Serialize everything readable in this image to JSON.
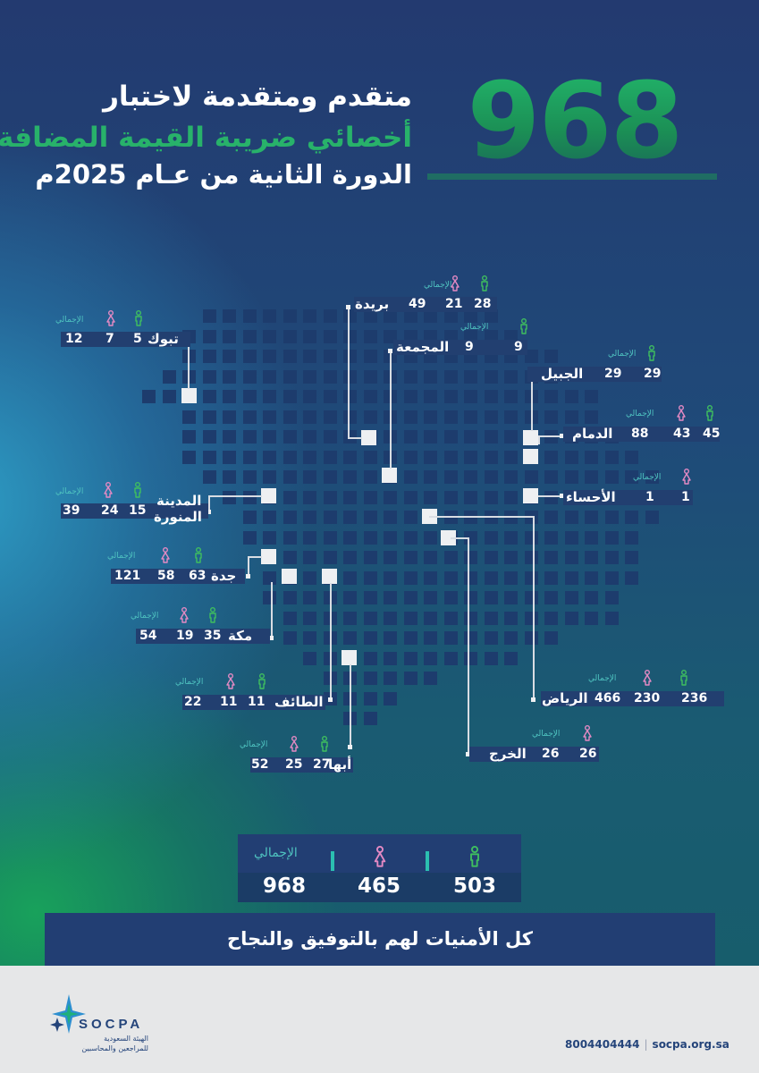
{
  "header": {
    "big_number": "968",
    "line1": "متقدم ومتقدمة لاختبار",
    "line2": "أخصائي ضريبة القيمة المضافة",
    "line3": "الدورة الثانية من عـام 2025م"
  },
  "labels": {
    "total": "الإجمالي"
  },
  "cities": [
    {
      "id": "tabuk",
      "name": "تبوك",
      "male": "5",
      "female": "7",
      "total": "12"
    },
    {
      "id": "buraydah",
      "name": "بريدة",
      "male": "28",
      "female": "21",
      "total": "49"
    },
    {
      "id": "majmaah",
      "name": "المجمعة",
      "male": "9",
      "female": "",
      "total": "9"
    },
    {
      "id": "jubail",
      "name": "الجبيل",
      "male": "29",
      "female": "",
      "total": "29"
    },
    {
      "id": "dammam",
      "name": "الدمام",
      "male": "45",
      "female": "43",
      "total": "88"
    },
    {
      "id": "ahsa",
      "name": "الأحساء",
      "male": "",
      "female": "1",
      "total": "1"
    },
    {
      "id": "madinah",
      "name": "المدينة المنورة",
      "name_line1": "المدينة",
      "name_line2": "المنورة",
      "male": "15",
      "female": "24",
      "total": "39"
    },
    {
      "id": "jeddah",
      "name": "جدة",
      "male": "63",
      "female": "58",
      "total": "121"
    },
    {
      "id": "makkah",
      "name": "مكة",
      "male": "35",
      "female": "19",
      "total": "54"
    },
    {
      "id": "taif",
      "name": "الطائف",
      "male": "11",
      "female": "11",
      "total": "22"
    },
    {
      "id": "riyadh",
      "name": "الرياض",
      "male": "236",
      "female": "230",
      "total": "466"
    },
    {
      "id": "abha",
      "name": "أبها",
      "male": "27",
      "female": "25",
      "total": "52"
    },
    {
      "id": "kharj",
      "name": "الخرج",
      "male": "",
      "female": "26",
      "total": "26"
    }
  ],
  "totals": {
    "male": "503",
    "female": "465",
    "total": "968",
    "total_label": "الإجمالي"
  },
  "banner": "كل الأمنيات لهم بالتوفيق والنجاح",
  "footer": {
    "logo_word": "SOCPA",
    "logo_line1": "الهيئة السعودية",
    "logo_line2": "للمراجعين والمحاسبين",
    "phone": "8004404444",
    "website": "socpa.org.sa"
  },
  "colors": {
    "male_icon": "#3fbf5f",
    "female_icon": "#e58ac4",
    "accent_teal": "#4fc3c0",
    "brand_navy": "#24447a"
  },
  "icons": {
    "male": "male-person-icon",
    "female": "female-person-icon"
  }
}
